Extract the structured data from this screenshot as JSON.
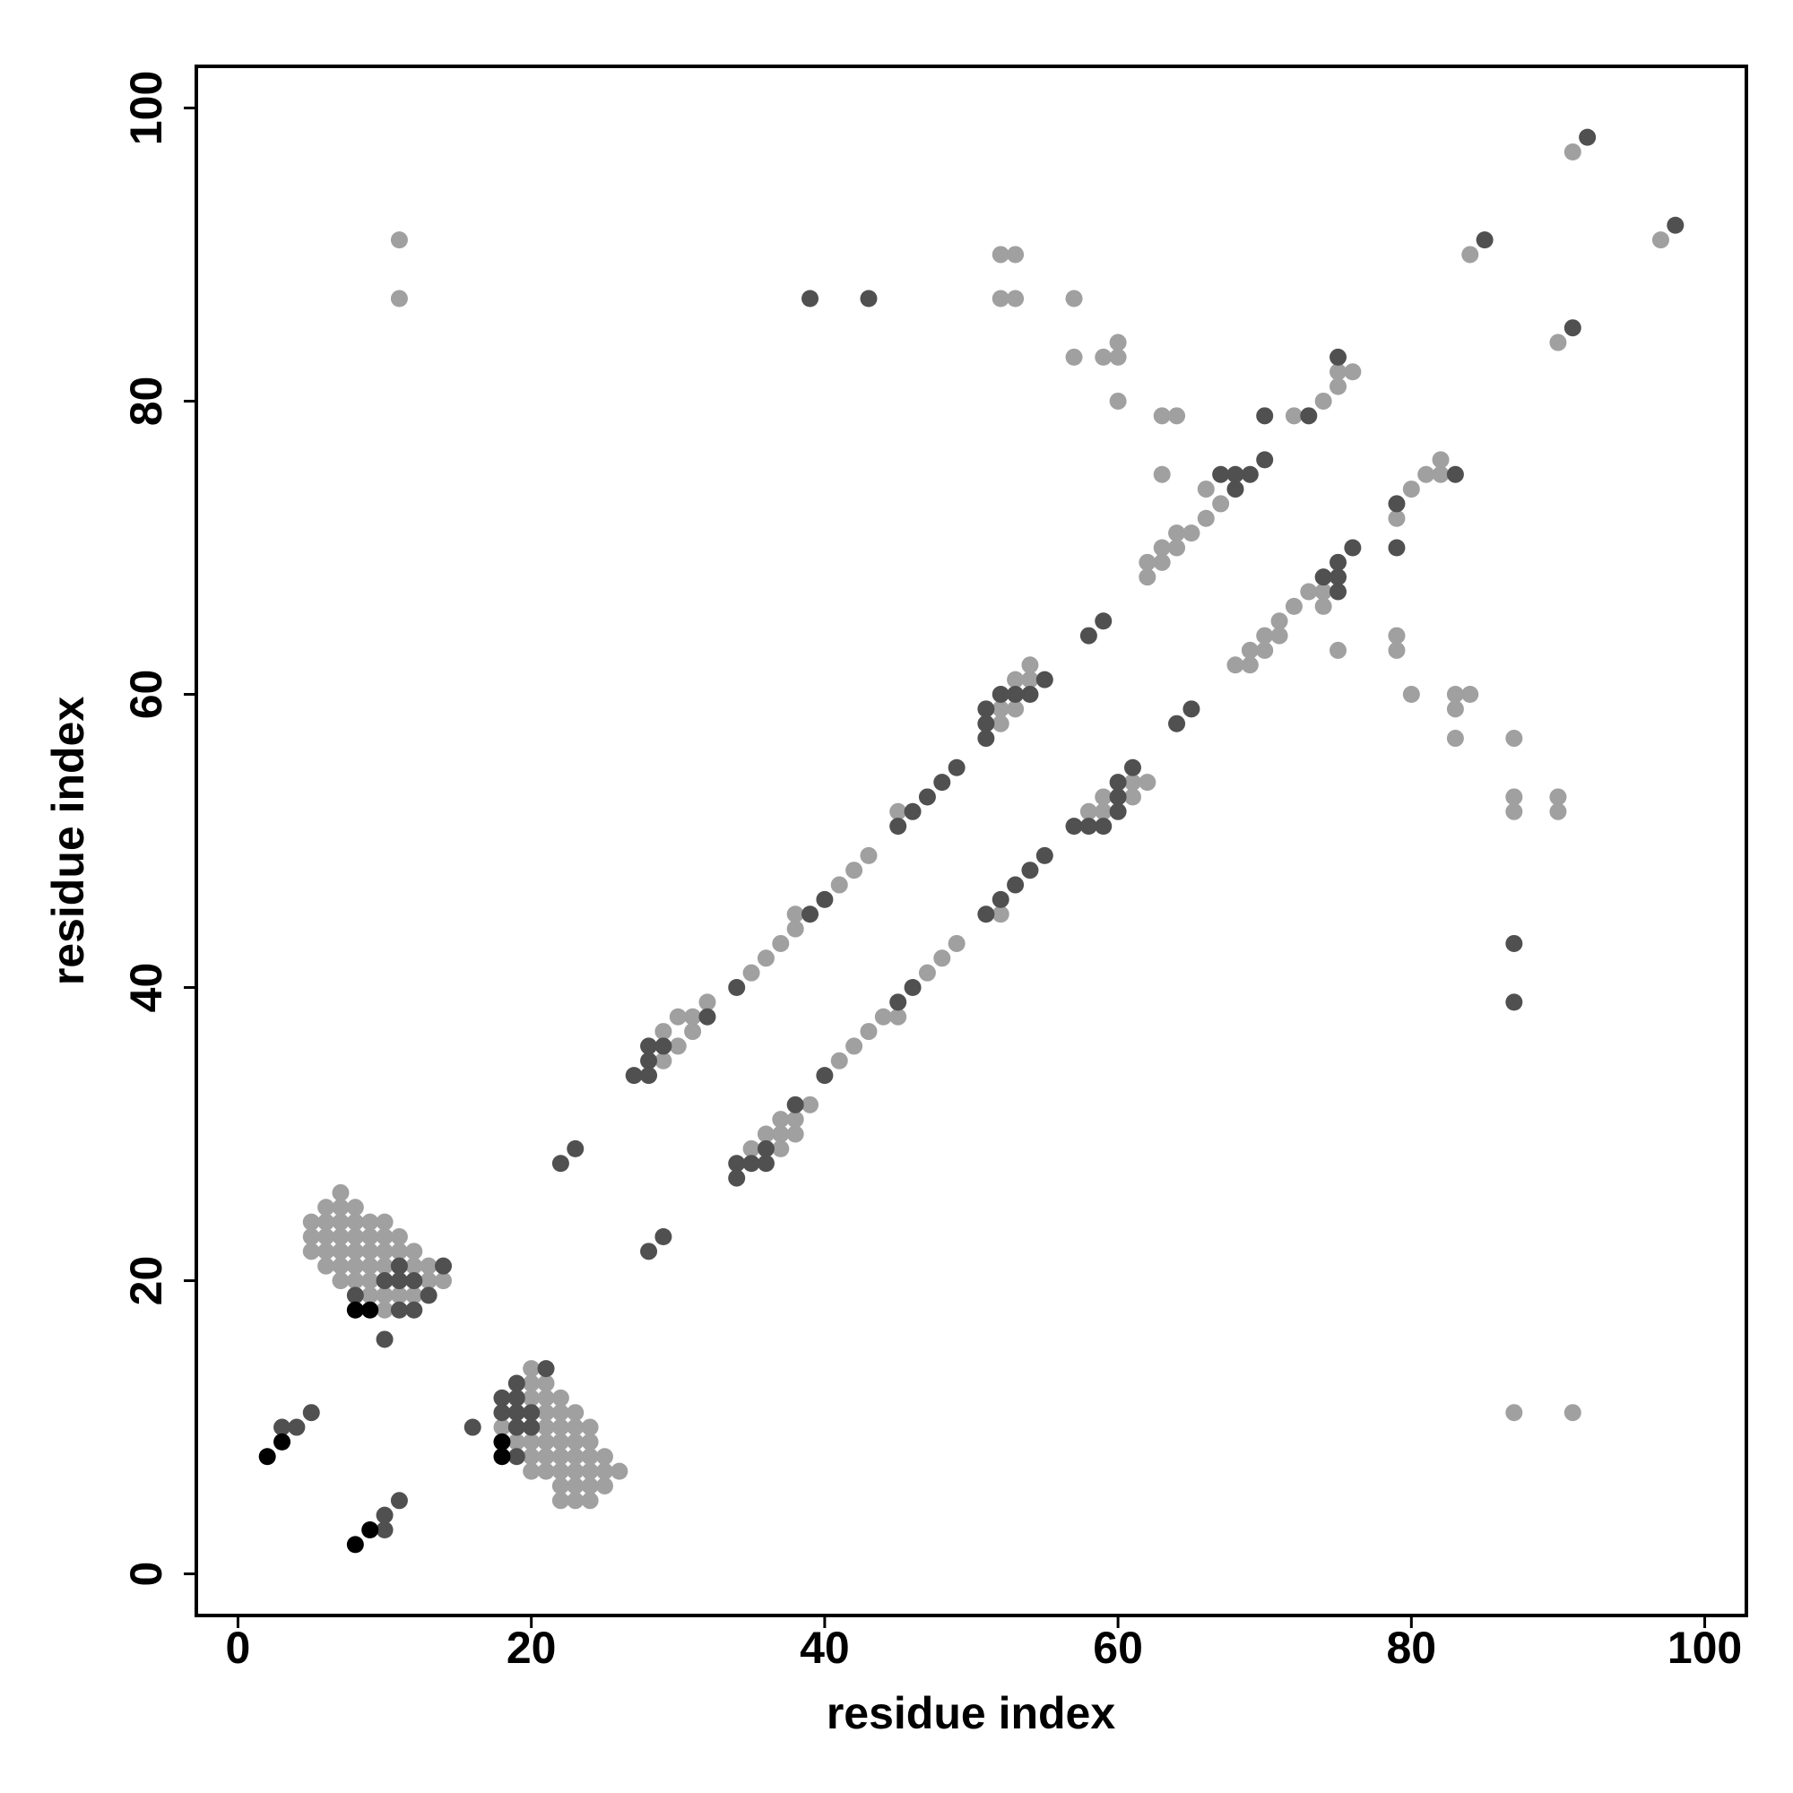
{
  "chart_data": {
    "type": "scatter",
    "xlabel": "residue index",
    "ylabel": "residue index",
    "xlim": [
      -2.84,
      102.84
    ],
    "ylim": [
      -2.84,
      102.84
    ],
    "xticks": [
      0,
      20,
      40,
      60,
      80,
      100
    ],
    "yticks": [
      0,
      20,
      40,
      60,
      80,
      100
    ],
    "series": [
      {
        "color": "#a0a0a0",
        "x": [
          7,
          6,
          7,
          8,
          5,
          6,
          7,
          8,
          9,
          10,
          5,
          6,
          7,
          8,
          9,
          10,
          11,
          5,
          6,
          7,
          8,
          9,
          10,
          11,
          12,
          6,
          7,
          8,
          9,
          10,
          12,
          13,
          7,
          8,
          9,
          13,
          14,
          9,
          10,
          11,
          12,
          10,
          20,
          20,
          21,
          20,
          21,
          22,
          21,
          22,
          23,
          18,
          21,
          22,
          23,
          24,
          19,
          20,
          21,
          22,
          23,
          24,
          20,
          21,
          22,
          23,
          24,
          25,
          20,
          21,
          22,
          23,
          24,
          25,
          26,
          22,
          23,
          24,
          25,
          22,
          23,
          24,
          29,
          29,
          30,
          30,
          31,
          31,
          32,
          35,
          36,
          37,
          38,
          38,
          41,
          42,
          43,
          45,
          52,
          52,
          53,
          53,
          54,
          54,
          62,
          62,
          63,
          63,
          64,
          64,
          65,
          66,
          66,
          67,
          63,
          72,
          74,
          75,
          75,
          76,
          63,
          64,
          60,
          57,
          59,
          60,
          60,
          57,
          52,
          53,
          52,
          53,
          11,
          11,
          84,
          90,
          91,
          97,
          35,
          36,
          37,
          37,
          37,
          38,
          38,
          39,
          41,
          42,
          43,
          44,
          45,
          47,
          48,
          49,
          52,
          58,
          59,
          59,
          61,
          61,
          62,
          68,
          69,
          69,
          70,
          70,
          71,
          71,
          72,
          73,
          74,
          74,
          75,
          79,
          80,
          81,
          82,
          82,
          79,
          79,
          80,
          83,
          83,
          83,
          84,
          87,
          87,
          87,
          90,
          90,
          87,
          91
        ],
        "values": [
          26,
          25,
          25,
          25,
          24,
          24,
          24,
          24,
          24,
          24,
          23,
          23,
          23,
          23,
          23,
          23,
          23,
          22,
          22,
          22,
          22,
          22,
          22,
          22,
          22,
          21,
          21,
          21,
          21,
          21,
          21,
          21,
          20,
          20,
          20,
          20,
          20,
          19,
          19,
          19,
          19,
          18,
          14,
          13,
          13,
          12,
          12,
          12,
          11,
          11,
          11,
          10,
          10,
          10,
          10,
          10,
          9,
          9,
          9,
          9,
          9,
          9,
          8,
          8,
          8,
          8,
          8,
          8,
          7,
          7,
          7,
          7,
          7,
          7,
          7,
          6,
          6,
          6,
          6,
          5,
          5,
          5,
          35,
          37,
          36,
          38,
          37,
          38,
          39,
          41,
          42,
          43,
          44,
          45,
          47,
          48,
          49,
          52,
          58,
          59,
          59,
          61,
          61,
          62,
          68,
          69,
          69,
          70,
          70,
          71,
          71,
          72,
          74,
          73,
          75,
          79,
          80,
          81,
          82,
          82,
          79,
          79,
          80,
          83,
          83,
          83,
          84,
          87,
          87,
          87,
          90,
          90,
          87,
          91,
          90,
          84,
          97,
          91,
          29,
          30,
          29,
          30,
          31,
          30,
          31,
          32,
          35,
          36,
          37,
          38,
          38,
          41,
          42,
          43,
          45,
          52,
          52,
          53,
          53,
          54,
          54,
          62,
          62,
          63,
          63,
          64,
          64,
          65,
          66,
          67,
          66,
          67,
          63,
          72,
          74,
          75,
          75,
          76,
          63,
          64,
          60,
          57,
          59,
          60,
          60,
          57,
          52,
          53,
          52,
          53,
          11,
          11
        ]
      },
      {
        "color": "#505050",
        "x": [
          3,
          4,
          5,
          10,
          10,
          11,
          16,
          10,
          14,
          8,
          13,
          11,
          12,
          10,
          11,
          12,
          11,
          21,
          19,
          18,
          19,
          18,
          19,
          20,
          19,
          20,
          19,
          22,
          23,
          28,
          29,
          27,
          28,
          28,
          28,
          29,
          32,
          34,
          39,
          40,
          45,
          46,
          47,
          48,
          49,
          51,
          51,
          51,
          52,
          53,
          54,
          55,
          58,
          59,
          67,
          68,
          68,
          69,
          70,
          70,
          73,
          75,
          39,
          43,
          85,
          91,
          92,
          98,
          34,
          34,
          35,
          36,
          36,
          38,
          40,
          45,
          46,
          51,
          52,
          53,
          54,
          55,
          57,
          58,
          59,
          60,
          60,
          60,
          61,
          64,
          65,
          74,
          75,
          75,
          75,
          76,
          79,
          79,
          83,
          87,
          87
        ],
        "values": [
          10,
          10,
          11,
          3,
          4,
          5,
          10,
          16,
          21,
          19,
          19,
          18,
          18,
          20,
          20,
          20,
          21,
          14,
          13,
          12,
          12,
          11,
          11,
          11,
          10,
          10,
          8,
          28,
          29,
          22,
          23,
          34,
          34,
          35,
          36,
          36,
          38,
          40,
          45,
          46,
          51,
          52,
          53,
          54,
          55,
          57,
          58,
          59,
          60,
          60,
          60,
          61,
          64,
          65,
          75,
          74,
          75,
          75,
          76,
          79,
          79,
          83,
          87,
          87,
          91,
          85,
          98,
          92,
          27,
          28,
          28,
          28,
          29,
          32,
          34,
          39,
          40,
          45,
          46,
          47,
          48,
          49,
          51,
          51,
          51,
          52,
          53,
          54,
          55,
          58,
          59,
          68,
          67,
          68,
          69,
          70,
          70,
          73,
          75,
          43,
          39
        ]
      },
      {
        "color": "#000000",
        "x": [
          2,
          3,
          8,
          9,
          8,
          9,
          18,
          18
        ],
        "values": [
          8,
          9,
          2,
          3,
          18,
          18,
          8,
          9
        ]
      }
    ]
  }
}
